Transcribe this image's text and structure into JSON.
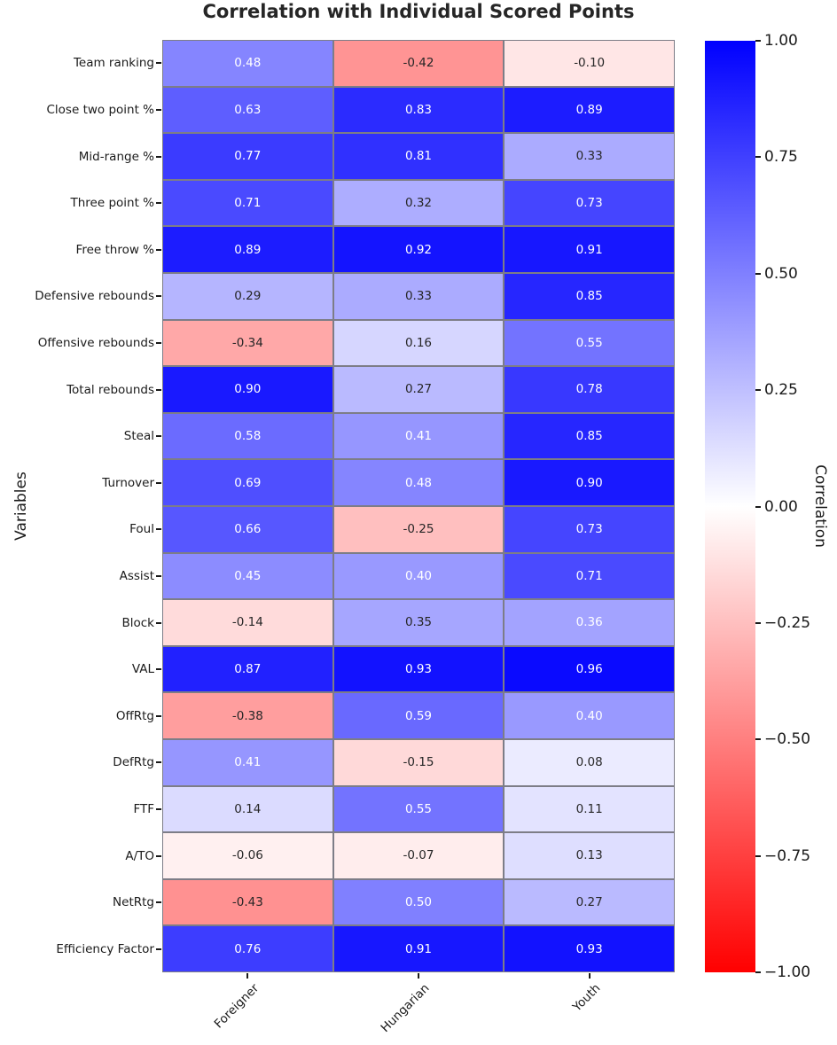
{
  "chart_data": {
    "type": "heatmap",
    "title": "Correlation with Individual Scored Points",
    "ylabel": "Variables",
    "xlabel": "",
    "colorbar_label": "Correlation",
    "columns": [
      "Foreigner",
      "Hungarian",
      "Youth"
    ],
    "rows": [
      "Team ranking",
      "Close two point %",
      "Mid-range %",
      "Three point %",
      "Free throw %",
      "Defensive rebounds",
      "Offensive rebounds",
      "Total rebounds",
      "Steal",
      "Turnover",
      "Foul",
      "Assist",
      "Block",
      "VAL",
      "OffRtg",
      "DefRtg",
      "FTF",
      "A/TO",
      "NetRtg",
      "Efficiency Factor"
    ],
    "values": [
      [
        0.48,
        -0.42,
        -0.1
      ],
      [
        0.63,
        0.83,
        0.89
      ],
      [
        0.77,
        0.81,
        0.33
      ],
      [
        0.71,
        0.32,
        0.73
      ],
      [
        0.89,
        0.92,
        0.91
      ],
      [
        0.29,
        0.33,
        0.85
      ],
      [
        -0.34,
        0.16,
        0.55
      ],
      [
        0.9,
        0.27,
        0.78
      ],
      [
        0.58,
        0.41,
        0.85
      ],
      [
        0.69,
        0.48,
        0.9
      ],
      [
        0.66,
        -0.25,
        0.73
      ],
      [
        0.45,
        0.4,
        0.71
      ],
      [
        -0.14,
        0.35,
        0.36
      ],
      [
        0.87,
        0.93,
        0.96
      ],
      [
        -0.38,
        0.59,
        0.4
      ],
      [
        0.41,
        -0.15,
        0.08
      ],
      [
        0.14,
        0.55,
        0.11
      ],
      [
        -0.06,
        -0.07,
        0.13
      ],
      [
        -0.43,
        0.5,
        0.27
      ],
      [
        0.76,
        0.91,
        0.93
      ]
    ],
    "value_format_decimals": 2,
    "colorbar_ticks": [
      "1.00",
      "0.75",
      "0.50",
      "0.25",
      "0.00",
      "−0.25",
      "−0.50",
      "−0.75",
      "−1.00"
    ],
    "vmin": -1,
    "vmax": 1,
    "legend_position": "right",
    "grid": true,
    "colors": {
      "positive_max": "#0000ff",
      "zero": "#ffffff",
      "negative_max": "#ff0000",
      "gridline": "#7d7d87",
      "annotation_light": "#ffffff",
      "annotation_dark": "#262626"
    }
  }
}
